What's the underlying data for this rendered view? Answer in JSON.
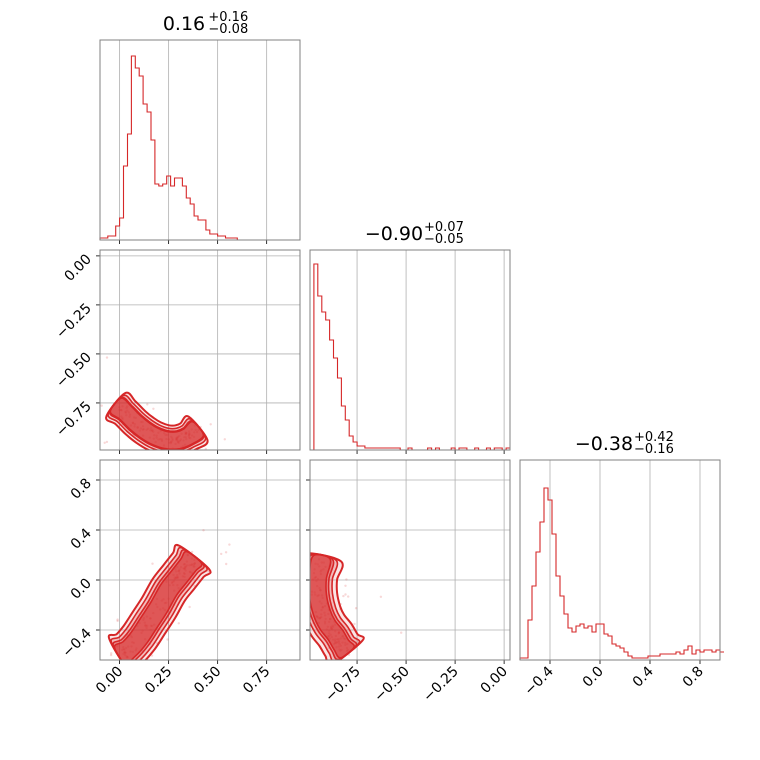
{
  "chart_data": {
    "type": "corner",
    "color": "#d62728",
    "panels": [
      {
        "id": "hist-0",
        "type": "histogram",
        "title": {
          "median": "0.16",
          "plus": "+0.16",
          "minus": "−0.08"
        },
        "xlim": [
          -0.1,
          0.92
        ],
        "ylim": [
          0,
          1.0
        ],
        "xticks": [
          0.0,
          0.25,
          0.5,
          0.75
        ],
        "bins": {
          "start": -0.1,
          "width": 0.02,
          "counts": [
            0.01,
            0.01,
            0.02,
            0.02,
            0.07,
            0.11,
            0.37,
            0.53,
            0.92,
            0.86,
            0.82,
            0.68,
            0.64,
            0.5,
            0.28,
            0.27,
            0.28,
            0.32,
            0.27,
            0.31,
            0.31,
            0.27,
            0.21,
            0.18,
            0.12,
            0.1,
            0.1,
            0.05,
            0.03,
            0.03,
            0.02,
            0.02,
            0.01,
            0.01,
            0.01,
            0.0,
            0.0,
            0.0,
            0.0,
            0.0,
            0.0,
            0.0,
            0.0,
            0.0,
            0.0,
            0.0,
            0.0,
            0.0,
            0.0,
            0.0,
            0.0
          ]
        }
      },
      {
        "id": "hist-1",
        "type": "histogram",
        "title": {
          "median": "−0.90",
          "plus": "+0.07",
          "minus": "−0.05"
        },
        "xlim": [
          -0.99,
          0.03
        ],
        "ylim": [
          0,
          1.0
        ],
        "xticks": [
          -0.75,
          -0.5,
          -0.25,
          0.0
        ],
        "tick_labels": [
          "−0.75",
          "−0.50",
          "−0.25",
          "0.00"
        ],
        "bins": {
          "start": -0.99,
          "width": 0.02,
          "counts": [
            0.0,
            0.93,
            0.77,
            0.69,
            0.65,
            0.55,
            0.46,
            0.36,
            0.22,
            0.15,
            0.07,
            0.04,
            0.02,
            0.02,
            0.01,
            0.01,
            0.01,
            0.01,
            0.01,
            0.01,
            0.01,
            0.01,
            0.01,
            0.0,
            0.0,
            0.01,
            0.0,
            0.0,
            0.0,
            0.0,
            0.01,
            0.0,
            0.01,
            0.0,
            0.0,
            0.0,
            0.01,
            0.0,
            0.01,
            0.01,
            0.0,
            0.0,
            0.01,
            0.0,
            0.0,
            0.01,
            0.0,
            0.01,
            0.01,
            0.0,
            0.01
          ]
        }
      },
      {
        "id": "hist-2",
        "type": "histogram",
        "title": {
          "median": "−0.38",
          "plus": "+0.42",
          "minus": "−0.16"
        },
        "xlim": [
          -0.64,
          0.96
        ],
        "ylim": [
          0,
          1.0
        ],
        "xticks": [
          -0.4,
          0.0,
          0.4,
          0.8
        ],
        "tick_labels": [
          "−0.4",
          "0.0",
          "0.4",
          "0.8"
        ],
        "bins": {
          "start": -0.64,
          "width": 0.032,
          "counts": [
            0.01,
            0.01,
            0.2,
            0.37,
            0.54,
            0.69,
            0.86,
            0.8,
            0.63,
            0.42,
            0.32,
            0.23,
            0.16,
            0.14,
            0.17,
            0.18,
            0.16,
            0.17,
            0.14,
            0.18,
            0.18,
            0.13,
            0.12,
            0.08,
            0.07,
            0.06,
            0.04,
            0.02,
            0.01,
            0.01,
            0.01,
            0.01,
            0.02,
            0.02,
            0.02,
            0.03,
            0.03,
            0.03,
            0.03,
            0.04,
            0.03,
            0.05,
            0.07,
            0.03,
            0.05,
            0.04,
            0.05,
            0.05,
            0.04,
            0.05,
            0.04
          ]
        }
      },
      {
        "id": "scatter-1-0",
        "type": "density",
        "xlim": [
          -0.1,
          0.92
        ],
        "ylim": [
          -0.99,
          0.03
        ],
        "yticks": [
          0.0,
          -0.25,
          -0.5,
          -0.75
        ],
        "tick_labels_y": [
          "0.00",
          "−0.25",
          "−0.50",
          "−0.75"
        ],
        "ridge": [
          [
            -0.02,
            -0.76
          ],
          [
            0.03,
            -0.8
          ],
          [
            0.08,
            -0.85
          ],
          [
            0.13,
            -0.89
          ],
          [
            0.18,
            -0.92
          ],
          [
            0.24,
            -0.94
          ],
          [
            0.3,
            -0.94
          ],
          [
            0.35,
            -0.92
          ],
          [
            0.4,
            -0.88
          ]
        ],
        "halfwidths": [
          0.035,
          0.028,
          0.022,
          0.02
        ]
      },
      {
        "id": "scatter-2-0",
        "type": "density",
        "xlim": [
          -0.1,
          0.92
        ],
        "ylim": [
          -0.64,
          0.96
        ],
        "xticks": [
          0.0,
          0.25,
          0.5,
          0.75
        ],
        "yticks": [
          0.8,
          0.4,
          0.0,
          -0.4
        ],
        "tick_labels_y": [
          "0.8",
          "0.4",
          "0.0",
          "−0.4"
        ],
        "ridge": [
          [
            0.0,
            -0.6
          ],
          [
            0.05,
            -0.55
          ],
          [
            0.1,
            -0.46
          ],
          [
            0.15,
            -0.34
          ],
          [
            0.2,
            -0.22
          ],
          [
            0.25,
            -0.08
          ],
          [
            0.3,
            0.02
          ],
          [
            0.35,
            0.12
          ],
          [
            0.38,
            0.18
          ]
        ],
        "halfwidths": [
          0.045,
          0.036,
          0.028,
          0.022
        ]
      },
      {
        "id": "scatter-2-1",
        "type": "density",
        "xlim": [
          -0.99,
          0.03
        ],
        "ylim": [
          -0.64,
          0.96
        ],
        "xticks": [
          -0.75,
          -0.5,
          -0.25,
          0.0
        ],
        "tick_labels": [
          "−0.75",
          "−0.50",
          "−0.25",
          "0.00"
        ],
        "ridge": [
          [
            -0.93,
            0.18
          ],
          [
            -0.95,
            0.02
          ],
          [
            -0.95,
            -0.12
          ],
          [
            -0.93,
            -0.26
          ],
          [
            -0.9,
            -0.36
          ],
          [
            -0.86,
            -0.44
          ],
          [
            -0.83,
            -0.52
          ],
          [
            -0.8,
            -0.58
          ]
        ],
        "halfwidths": [
          0.045,
          0.034,
          0.026,
          0.02
        ]
      }
    ]
  }
}
